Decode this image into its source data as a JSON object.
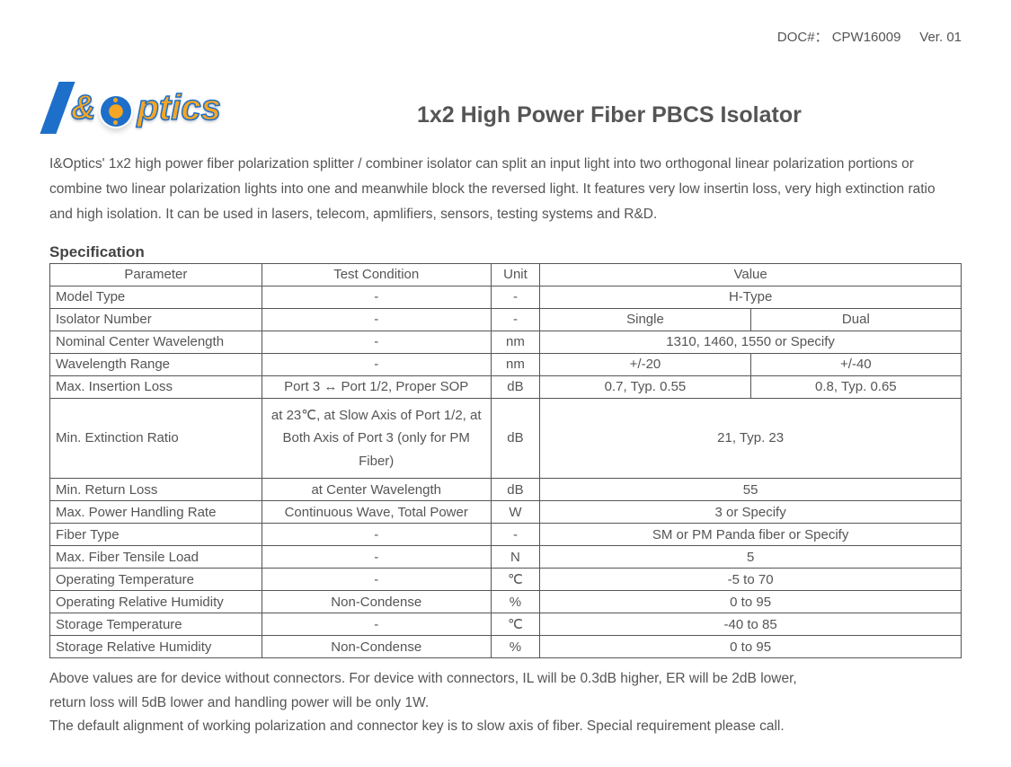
{
  "header": {
    "doc_number_label": "DOC#：",
    "doc_number": "CPW16009",
    "version_label": "Ver.",
    "version": "01"
  },
  "logo": {
    "amp": "&",
    "text": "ptics"
  },
  "title": "1x2 High Power Fiber PBCS Isolator",
  "description": "I&Optics' 1x2 high power fiber polarization splitter / combiner isolator can split an input light into two orthogonal linear polarization portions or combine two linear polarization lights into one and meanwhile block the reversed light. It features very low insertin loss, very high extinction ratio and high isolation. It can be used in lasers, telecom, apmlifiers, sensors, testing systems and R&D.",
  "section_heading": "Specification",
  "table": {
    "head": {
      "parameter": "Parameter",
      "condition": "Test Condition",
      "unit": "Unit",
      "value": "Value"
    },
    "rows": [
      {
        "param": "Model Type",
        "cond": "-",
        "unit": "-",
        "value": "H-Type",
        "span": 2
      },
      {
        "param": "Isolator Number",
        "cond": "-",
        "unit": "-",
        "v1": "Single",
        "v2": "Dual"
      },
      {
        "param": "Nominal Center Wavelength",
        "cond": "-",
        "unit": "nm",
        "value": "1310, 1460, 1550 or Specify",
        "span": 2
      },
      {
        "param": "Wavelength Range",
        "cond": "-",
        "unit": "nm",
        "v1": "+/-20",
        "v2": "+/-40"
      },
      {
        "param": "Max. Insertion Loss",
        "cond": "Port 3 ↔ Port 1/2, Proper SOP",
        "unit": "dB",
        "v1": "0.7, Typ. 0.55",
        "v2": "0.8, Typ. 0.65"
      },
      {
        "param": "Min. Extinction Ratio",
        "cond": "at 23℃, at Slow Axis of Port 1/2, at Both Axis of Port 3 (only for PM Fiber)",
        "unit": "dB",
        "value": "21, Typ. 23",
        "span": 2,
        "tall": true
      },
      {
        "param": "Min. Return Loss",
        "cond": "at Center Wavelength",
        "unit": "dB",
        "value": "55",
        "span": 2
      },
      {
        "param": "Max. Power Handling Rate",
        "cond": "Continuous Wave, Total Power",
        "unit": "W",
        "value": "3 or Specify",
        "span": 2
      },
      {
        "param": "Fiber Type",
        "cond": "-",
        "unit": "-",
        "value": "SM or PM Panda fiber or Specify",
        "span": 2
      },
      {
        "param": "Max. Fiber Tensile Load",
        "cond": "-",
        "unit": "N",
        "value": "5",
        "span": 2
      },
      {
        "param": "Operating Temperature",
        "cond": "-",
        "unit": "℃",
        "value": "-5 to 70",
        "span": 2
      },
      {
        "param": "Operating Relative Humidity",
        "cond": "Non-Condense",
        "unit": "%",
        "value": "0 to 95",
        "span": 2
      },
      {
        "param": "Storage Temperature",
        "cond": "-",
        "unit": "℃",
        "value": "-40 to 85",
        "span": 2
      },
      {
        "param": "Storage Relative Humidity",
        "cond": "Non-Condense",
        "unit": "%",
        "value": "0 to 95",
        "span": 2
      }
    ]
  },
  "footnotes": [
    "Above values are for device without connectors. For device with connectors, IL will be 0.3dB higher, ER will be 2dB lower,",
    "return loss will 5dB lower and handling power will be only 1W.",
    "The default alignment of working polarization and connector key is to slow axis of fiber. Special requirement please call."
  ],
  "style": {
    "text_color": "#555555",
    "border_color": "#555555",
    "background": "#ffffff",
    "logo_blue": "#1e6fc9",
    "logo_orange": "#f6a623"
  }
}
